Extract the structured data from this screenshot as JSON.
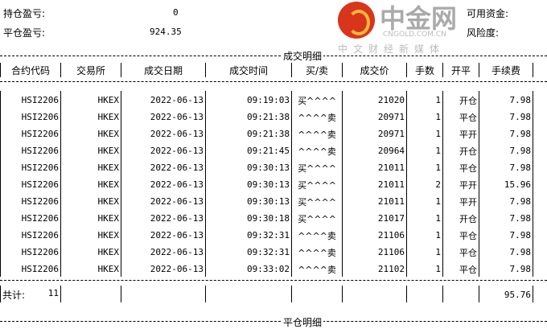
{
  "summary": {
    "hold_pl_label": "持仓盈亏:",
    "hold_pl": "0",
    "close_pl_label": "平仓盈亏:",
    "close_pl": "924.35",
    "avail_label": "可用资金:",
    "risk_label": "风险度:"
  },
  "section1": "成交明细",
  "section2": "平仓明细",
  "headers": [
    "合约代码",
    "交易所",
    "成交日期",
    "成交时间",
    "买/卖",
    "成交价",
    "手数",
    "开平",
    "手续费"
  ],
  "rows": [
    [
      "HSI2206",
      "HKEX",
      "2022-06-13",
      "09:19:03",
      "买^^^^",
      "21020",
      "1",
      "开仓",
      "7.98"
    ],
    [
      "HSI2206",
      "HKEX",
      "2022-06-13",
      "09:21:38",
      "^^^^卖",
      "20971",
      "1",
      "平仓",
      "7.98"
    ],
    [
      "HSI2206",
      "HKEX",
      "2022-06-13",
      "09:21:38",
      "^^^^卖",
      "20971",
      "1",
      "平开",
      "7.98"
    ],
    [
      "HSI2206",
      "HKEX",
      "2022-06-13",
      "09:21:45",
      "^^^^卖",
      "20964",
      "1",
      "开仓",
      "7.98"
    ],
    [
      "HSI2206",
      "HKEX",
      "2022-06-13",
      "09:30:13",
      "买^^^^",
      "21011",
      "1",
      "平仓",
      "7.98"
    ],
    [
      "HSI2206",
      "HKEX",
      "2022-06-13",
      "09:30:13",
      "买^^^^",
      "21011",
      "2",
      "平开",
      "15.96"
    ],
    [
      "HSI2206",
      "HKEX",
      "2022-06-13",
      "09:30:13",
      "买^^^^",
      "21011",
      "1",
      "平开",
      "7.98"
    ],
    [
      "HSI2206",
      "HKEX",
      "2022-06-13",
      "09:30:18",
      "买^^^^",
      "21017",
      "1",
      "开仓",
      "7.98"
    ],
    [
      "HSI2206",
      "HKEX",
      "2022-06-13",
      "09:32:31",
      "^^^^卖",
      "21106",
      "1",
      "平仓",
      "7.98"
    ],
    [
      "HSI2206",
      "HKEX",
      "2022-06-13",
      "09:32:31",
      "^^^^卖",
      "21106",
      "1",
      "平仓",
      "7.98"
    ],
    [
      "HSI2206",
      "HKEX",
      "2022-06-13",
      "09:33:02",
      "^^^^卖",
      "21102",
      "1",
      "平仓",
      "7.98"
    ]
  ],
  "total": {
    "label": "共计:",
    "count": "11",
    "fee": "95.76"
  },
  "watermark": {
    "brand": "中金网",
    "domain": "CNGOLD.COM.CN",
    "slogan": "中文财经新媒体"
  }
}
